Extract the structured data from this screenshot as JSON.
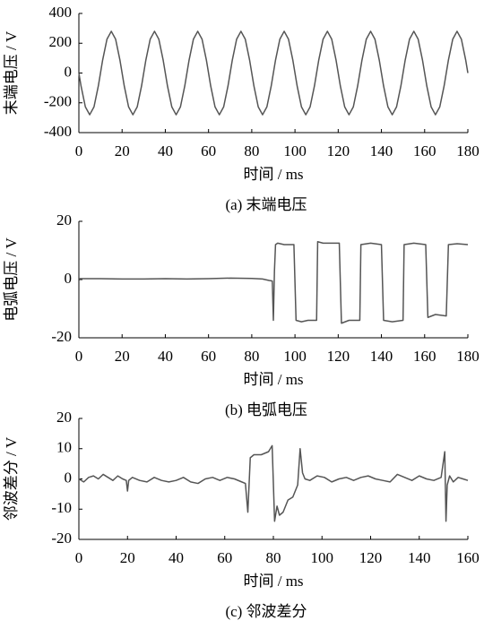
{
  "chart_data": [
    {
      "type": "line",
      "title": "(a)  末端电压",
      "xlabel": "时间 / ms",
      "ylabel": "末端电压 / V",
      "color": "#555555",
      "xlim": [
        0,
        180
      ],
      "xticks": [
        0,
        20,
        40,
        60,
        80,
        100,
        120,
        140,
        160,
        180
      ],
      "ylim": [
        -400,
        400
      ],
      "yticks": [
        -400,
        -200,
        0,
        200,
        400
      ],
      "x": [
        0,
        1,
        3,
        5,
        7,
        9,
        11,
        13,
        15,
        17,
        19,
        21,
        23,
        25,
        27,
        29,
        31,
        33,
        35,
        37,
        39,
        41,
        43,
        45,
        47,
        49,
        51,
        53,
        55,
        57,
        59,
        61,
        63,
        65,
        67,
        69,
        71,
        73,
        75,
        77,
        79,
        81,
        83,
        85,
        87,
        89,
        91,
        93,
        95,
        97,
        99,
        101,
        103,
        105,
        107,
        109,
        111,
        113,
        115,
        117,
        119,
        121,
        123,
        125,
        127,
        129,
        131,
        133,
        135,
        137,
        139,
        141,
        143,
        145,
        147,
        149,
        151,
        153,
        155,
        157,
        159,
        161,
        163,
        165,
        167,
        169,
        171,
        173,
        175,
        177,
        179,
        180
      ],
      "values": [
        0,
        -87,
        -227,
        -280,
        -227,
        -87,
        87,
        227,
        280,
        227,
        87,
        -87,
        -227,
        -280,
        -227,
        -87,
        87,
        227,
        280,
        227,
        87,
        -87,
        -227,
        -280,
        -227,
        -87,
        87,
        227,
        280,
        227,
        87,
        -87,
        -227,
        -280,
        -227,
        -87,
        87,
        227,
        280,
        227,
        87,
        -87,
        -227,
        -280,
        -227,
        -87,
        87,
        227,
        280,
        227,
        87,
        -87,
        -227,
        -280,
        -227,
        -87,
        87,
        227,
        280,
        227,
        87,
        -87,
        -227,
        -280,
        -227,
        -87,
        87,
        227,
        280,
        227,
        87,
        -87,
        -227,
        -280,
        -227,
        -87,
        87,
        227,
        280,
        227,
        87,
        -87,
        -227,
        -280,
        -227,
        -87,
        87,
        227,
        280,
        227,
        87,
        0
      ]
    },
    {
      "type": "line",
      "title": "(b)  电弧电压",
      "xlabel": "时间 / ms",
      "ylabel": "电弧电压 / V",
      "color": "#555555",
      "xlim": [
        0,
        180
      ],
      "xticks": [
        0,
        20,
        40,
        60,
        80,
        100,
        120,
        140,
        160,
        180
      ],
      "ylim": [
        -20,
        20
      ],
      "yticks": [
        -20,
        0,
        20
      ],
      "x": [
        0,
        10,
        20,
        30,
        40,
        50,
        60,
        70,
        80,
        85,
        88,
        89.5,
        90,
        90.5,
        91,
        92,
        95,
        99.5,
        100.5,
        103,
        106,
        110,
        110.5,
        113,
        116,
        120.5,
        121.5,
        125,
        130,
        130.5,
        135,
        140,
        141,
        145,
        150,
        150.5,
        155,
        160.5,
        161.5,
        165,
        170,
        171,
        175,
        180
      ],
      "values": [
        0.3,
        0.3,
        0.2,
        0.2,
        0.3,
        0.2,
        0.3,
        0.5,
        0.4,
        0.2,
        -0.3,
        -0.5,
        -14,
        3,
        12,
        12.5,
        12,
        12,
        -14,
        -14.5,
        -14,
        -14,
        13,
        12.5,
        12.5,
        12.5,
        -15,
        -14,
        -14,
        12,
        12.5,
        12,
        -14,
        -14.5,
        -14,
        12,
        12.5,
        12,
        -13,
        -12,
        -12.5,
        12,
        12.3,
        12
      ]
    },
    {
      "type": "line",
      "title": "(c)  邻波差分",
      "xlabel": "时间 / ms",
      "ylabel": "邻波差分 / V",
      "color": "#555555",
      "xlim": [
        0,
        160
      ],
      "xticks": [
        0,
        20,
        40,
        60,
        80,
        100,
        120,
        140,
        160
      ],
      "ylim": [
        -20,
        20
      ],
      "yticks": [
        -20,
        -10,
        0,
        10,
        20
      ],
      "x": [
        0,
        2,
        4,
        6,
        8,
        10,
        12,
        14,
        16,
        18,
        19.5,
        20,
        20.5,
        22,
        25,
        28,
        31,
        34,
        37,
        40,
        43,
        46,
        49,
        52,
        55,
        58,
        61,
        64,
        67,
        68.5,
        69.5,
        70.5,
        72,
        75,
        78,
        79.5,
        80.5,
        81.5,
        82.5,
        84,
        86,
        88,
        90,
        91,
        92,
        93,
        95,
        98,
        101,
        104,
        107,
        110,
        113,
        116,
        119,
        122,
        125,
        128,
        131,
        134,
        137,
        140,
        143,
        146,
        149,
        150.5,
        151,
        151.5,
        152.5,
        154,
        156,
        158,
        160
      ],
      "values": [
        0,
        -1,
        0.5,
        1,
        0,
        1.5,
        0.5,
        -0.5,
        1,
        0,
        -0.5,
        -4,
        -0.5,
        0.5,
        -0.5,
        -1,
        0.5,
        -0.5,
        -1,
        -0.5,
        0.5,
        -1,
        -1.5,
        0,
        0.5,
        -0.5,
        0.5,
        0,
        -1,
        -1.5,
        -11,
        7,
        8,
        8,
        9,
        11,
        -14,
        -9,
        -12,
        -11,
        -7,
        -6,
        -2,
        10,
        2,
        0,
        -0.5,
        1,
        0.5,
        -1,
        0,
        0.5,
        -0.5,
        0.5,
        1,
        0,
        -0.5,
        -1,
        1.5,
        0.5,
        -0.5,
        1,
        0,
        -0.5,
        0.5,
        9,
        -14,
        -2,
        1,
        -1,
        0.5,
        0,
        -0.5
      ]
    }
  ]
}
